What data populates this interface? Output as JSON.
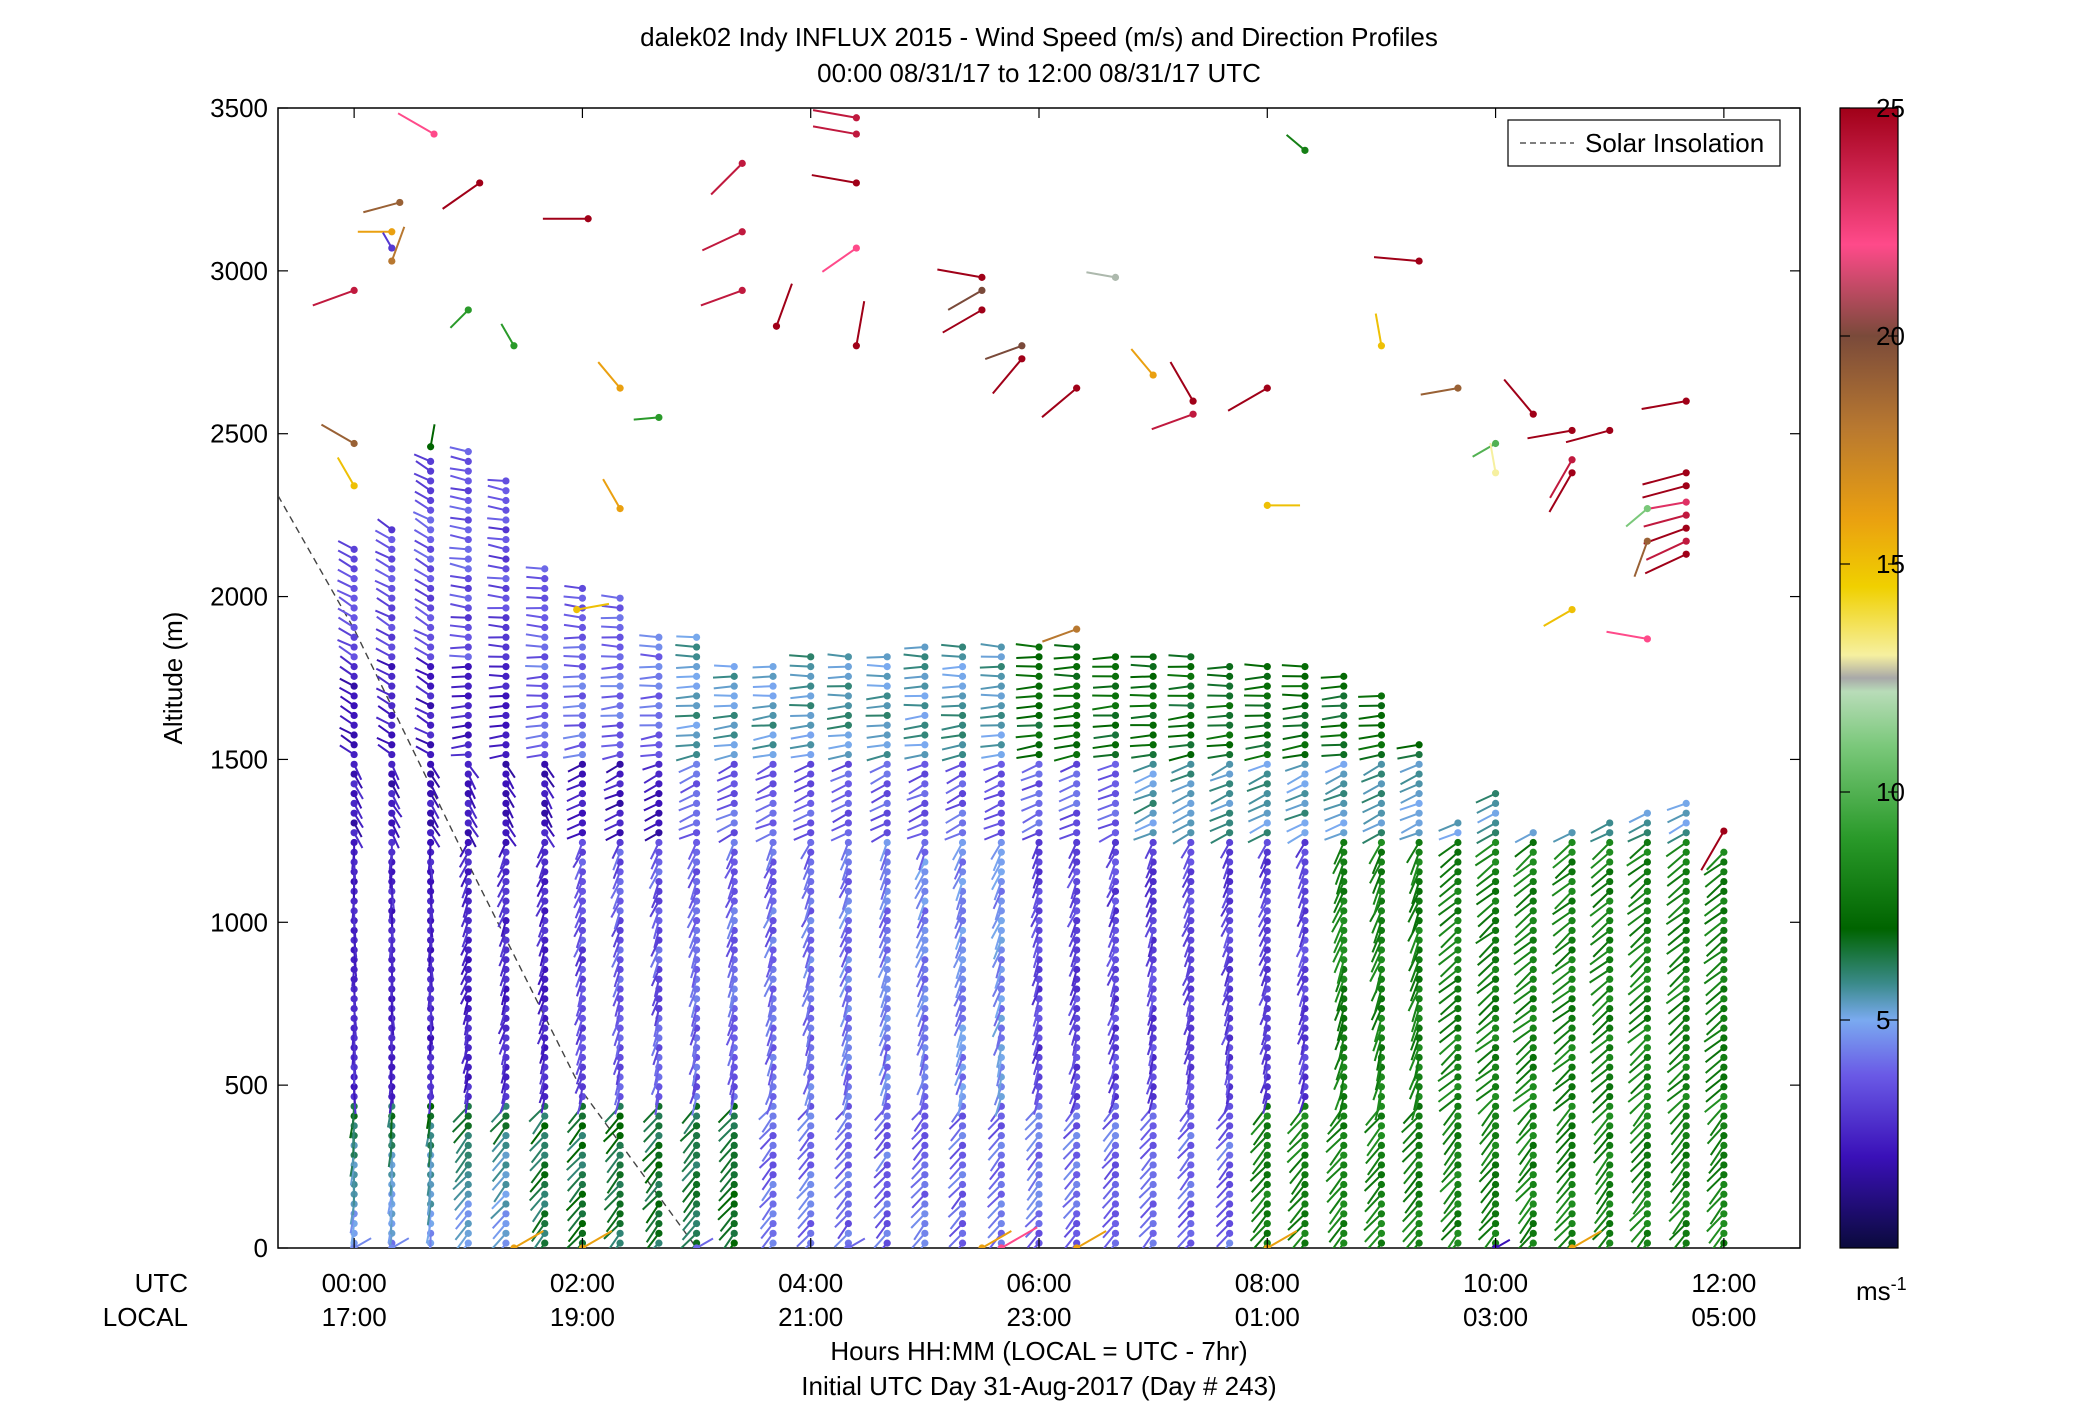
{
  "chart_data": {
    "type": "scatter",
    "title": "dalek02 Indy INFLUX 2015 - Wind Speed (m/s) and Direction Profiles",
    "subtitle": "00:00 08/31/17 to 12:00 08/31/17  UTC",
    "xlabel_line1": "Hours HH:MM  (LOCAL = UTC - 7hr)",
    "xlabel_line2": "Initial UTC Day 31-Aug-2017 (Day # 243)",
    "ylabel": "Altitude (m)",
    "xlim": [
      -0.667,
      12.667
    ],
    "ylim": [
      0,
      3500
    ],
    "x_row_label_utc": "UTC",
    "x_row_label_local": "LOCAL",
    "x_ticks": [
      0,
      2,
      4,
      6,
      8,
      10,
      12
    ],
    "x_tick_labels_utc": [
      "00:00",
      "02:00",
      "04:00",
      "06:00",
      "08:00",
      "10:00",
      "12:00"
    ],
    "x_tick_labels_local": [
      "17:00",
      "19:00",
      "21:00",
      "23:00",
      "01:00",
      "03:00",
      "05:00"
    ],
    "y_ticks": [
      0,
      500,
      1000,
      1500,
      2000,
      2500,
      3000,
      3500
    ],
    "y_tick_labels": [
      "0",
      "500",
      "1000",
      "1500",
      "2000",
      "2500",
      "3000",
      "3500"
    ],
    "legend": {
      "label": "Solar Insolation",
      "placement": "top-right"
    },
    "colorbar": {
      "range": [
        0,
        25
      ],
      "ticks": [
        5,
        10,
        15,
        20,
        25
      ],
      "tick_labels": [
        "5",
        "10",
        "15",
        "20",
        "25"
      ],
      "unit_label": "ms",
      "unit_exponent": "-1",
      "stops": [
        {
          "v": 0,
          "c": "#0a0a3c"
        },
        {
          "v": 2,
          "c": "#3a10b8"
        },
        {
          "v": 3.8,
          "c": "#6a5ae6"
        },
        {
          "v": 5,
          "c": "#7aaaf0"
        },
        {
          "v": 5.8,
          "c": "#3a8a8a"
        },
        {
          "v": 7,
          "c": "#006400"
        },
        {
          "v": 9,
          "c": "#2a9a2a"
        },
        {
          "v": 11,
          "c": "#7ac87a"
        },
        {
          "v": 12.2,
          "c": "#b8dcb8"
        },
        {
          "v": 12.5,
          "c": "#a8a8a8"
        },
        {
          "v": 13,
          "c": "#f6f0a0"
        },
        {
          "v": 14.5,
          "c": "#f0d000"
        },
        {
          "v": 16,
          "c": "#eaa010"
        },
        {
          "v": 18,
          "c": "#b87830"
        },
        {
          "v": 20,
          "c": "#7a4a3a"
        },
        {
          "v": 22,
          "c": "#ff4a8a"
        },
        {
          "v": 25,
          "c": "#a00018"
        }
      ]
    },
    "solar_insolation": [
      [
        -0.667,
        2310
      ],
      [
        0,
        1900
      ],
      [
        1,
        1180
      ],
      [
        2,
        480
      ],
      [
        3,
        0
      ]
    ],
    "profile_times": [
      0,
      0.33,
      0.67,
      1,
      1.33,
      1.67,
      2,
      2.33,
      2.67,
      3,
      3.33,
      3.67,
      4,
      4.33,
      4.67,
      5,
      5.33,
      5.67,
      6,
      6.33,
      6.67,
      7,
      7.33,
      7.67,
      8,
      8.33,
      8.67,
      9,
      9.33,
      9.67,
      10,
      10.33,
      10.67,
      11,
      11.33,
      11.67,
      12
    ],
    "profile_tops": [
      2170,
      2220,
      2420,
      2470,
      2380,
      2100,
      2040,
      2000,
      1900,
      1880,
      1810,
      1810,
      1820,
      1830,
      1840,
      1850,
      1850,
      1850,
      1850,
      1850,
      1840,
      1830,
      1820,
      1810,
      1800,
      1800,
      1760,
      1700,
      1570,
      1310,
      1400,
      1280,
      1290,
      1320,
      1360,
      1370,
      1240
    ],
    "barb_spacing_m": 30,
    "bottom_markers": [
      {
        "x": 0,
        "v": 4.5
      },
      {
        "x": 0.33,
        "v": 4.5
      },
      {
        "x": 1.4,
        "v": 16
      },
      {
        "x": 2.0,
        "v": 16
      },
      {
        "x": 3.0,
        "v": 4
      },
      {
        "x": 4.33,
        "v": 4
      },
      {
        "x": 5.5,
        "v": 16
      },
      {
        "x": 5.67,
        "v": 22
      },
      {
        "x": 6.33,
        "v": 16
      },
      {
        "x": 8.0,
        "v": 16
      },
      {
        "x": 10.0,
        "v": 2
      },
      {
        "x": 10.67,
        "v": 16
      }
    ],
    "upper_barbs": [
      {
        "x": 0.33,
        "y": 3120,
        "v": 16,
        "d": 270
      },
      {
        "x": 0.0,
        "y": 2940,
        "v": 24,
        "d": 250
      },
      {
        "x": 0.7,
        "y": 3420,
        "v": 22,
        "d": 300
      },
      {
        "x": 0.4,
        "y": 3210,
        "v": 19,
        "d": 255
      },
      {
        "x": 1.1,
        "y": 3270,
        "v": 25,
        "d": 235
      },
      {
        "x": 0.33,
        "y": 3070,
        "v": 3,
        "d": 330
      },
      {
        "x": 0.33,
        "y": 3030,
        "v": 18,
        "d": 20
      },
      {
        "x": 1.0,
        "y": 2880,
        "v": 9,
        "d": 225
      },
      {
        "x": 1.4,
        "y": 2770,
        "v": 9,
        "d": 330
      },
      {
        "x": 2.05,
        "y": 3160,
        "v": 25,
        "d": 270
      },
      {
        "x": 3.4,
        "y": 3330,
        "v": 24,
        "d": 225
      },
      {
        "x": 3.4,
        "y": 3120,
        "v": 24,
        "d": 245
      },
      {
        "x": 3.4,
        "y": 2940,
        "v": 24,
        "d": 250
      },
      {
        "x": 3.7,
        "y": 2830,
        "v": 25,
        "d": 20
      },
      {
        "x": 4.4,
        "y": 3470,
        "v": 24,
        "d": 280
      },
      {
        "x": 4.4,
        "y": 3420,
        "v": 24,
        "d": 280
      },
      {
        "x": 4.4,
        "y": 3270,
        "v": 25,
        "d": 280
      },
      {
        "x": 4.4,
        "y": 3070,
        "v": 22,
        "d": 235
      },
      {
        "x": 4.4,
        "y": 2770,
        "v": 25,
        "d": 10
      },
      {
        "x": 5.5,
        "y": 2980,
        "v": 25,
        "d": 280
      },
      {
        "x": 5.5,
        "y": 2940,
        "v": 20,
        "d": 240
      },
      {
        "x": 5.5,
        "y": 2880,
        "v": 25,
        "d": 240
      },
      {
        "x": 5.85,
        "y": 2770,
        "v": 20,
        "d": 250
      },
      {
        "x": 5.85,
        "y": 2730,
        "v": 25,
        "d": 220
      },
      {
        "x": 6.33,
        "y": 2640,
        "v": 25,
        "d": 230
      },
      {
        "x": 6.67,
        "y": 2980,
        "v": 12.4,
        "d": 280
      },
      {
        "x": 7.0,
        "y": 2680,
        "v": 16,
        "d": 320
      },
      {
        "x": 7.35,
        "y": 2600,
        "v": 25,
        "d": 330
      },
      {
        "x": 7.35,
        "y": 2560,
        "v": 24,
        "d": 250
      },
      {
        "x": 8.0,
        "y": 2640,
        "v": 25,
        "d": 240
      },
      {
        "x": 8.33,
        "y": 3370,
        "v": 8,
        "d": 310
      },
      {
        "x": 9.33,
        "y": 3030,
        "v": 25,
        "d": 275
      },
      {
        "x": 9.0,
        "y": 2770,
        "v": 15,
        "d": 350
      },
      {
        "x": 9.67,
        "y": 2640,
        "v": 19,
        "d": 260
      },
      {
        "x": 10.0,
        "y": 2470,
        "v": 10,
        "d": 240
      },
      {
        "x": 10.0,
        "y": 2380,
        "v": 13,
        "d": 350
      },
      {
        "x": 10.33,
        "y": 2560,
        "v": 25,
        "d": 320
      },
      {
        "x": 10.67,
        "y": 2510,
        "v": 25,
        "d": 260
      },
      {
        "x": 10.67,
        "y": 2420,
        "v": 24,
        "d": 210
      },
      {
        "x": 10.67,
        "y": 2380,
        "v": 25,
        "d": 210
      },
      {
        "x": 11.0,
        "y": 2510,
        "v": 25,
        "d": 255
      },
      {
        "x": 11.67,
        "y": 2600,
        "v": 25,
        "d": 260
      },
      {
        "x": 11.67,
        "y": 2380,
        "v": 25,
        "d": 255
      },
      {
        "x": 11.67,
        "y": 2340,
        "v": 25,
        "d": 255
      },
      {
        "x": 11.67,
        "y": 2290,
        "v": 23,
        "d": 260
      },
      {
        "x": 11.67,
        "y": 2250,
        "v": 24,
        "d": 255
      },
      {
        "x": 11.67,
        "y": 2210,
        "v": 25,
        "d": 250
      },
      {
        "x": 11.67,
        "y": 2170,
        "v": 24,
        "d": 245
      },
      {
        "x": 11.67,
        "y": 2130,
        "v": 25,
        "d": 245
      },
      {
        "x": 11.33,
        "y": 2270,
        "v": 11,
        "d": 230
      },
      {
        "x": 11.33,
        "y": 2170,
        "v": 19,
        "d": 200
      },
      {
        "x": 11.33,
        "y": 1870,
        "v": 22,
        "d": 280
      },
      {
        "x": 10.67,
        "y": 1960,
        "v": 15,
        "d": 240
      },
      {
        "x": 8.0,
        "y": 2280,
        "v": 15,
        "d": 90
      },
      {
        "x": 2.33,
        "y": 2640,
        "v": 16,
        "d": 320
      },
      {
        "x": 2.33,
        "y": 2270,
        "v": 16,
        "d": 330
      },
      {
        "x": 2.67,
        "y": 2550,
        "v": 9,
        "d": 265
      },
      {
        "x": 0.0,
        "y": 2470,
        "v": 19,
        "d": 300
      },
      {
        "x": 0.0,
        "y": 2340,
        "v": 15,
        "d": 330
      },
      {
        "x": 0.67,
        "y": 2460,
        "v": 7,
        "d": 10
      },
      {
        "x": 12.0,
        "y": 1280,
        "v": 25,
        "d": 210
      },
      {
        "x": 1.95,
        "y": 1960,
        "v": 15,
        "d": 80
      },
      {
        "x": 6.33,
        "y": 1900,
        "v": 18,
        "d": 250
      }
    ]
  }
}
